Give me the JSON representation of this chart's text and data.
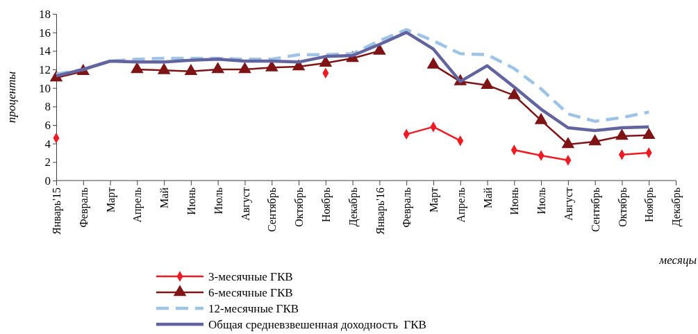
{
  "chart_data": {
    "type": "line",
    "ylabel": "проценты",
    "xlabel": "месяцы",
    "categories": [
      "Январь'15",
      "Февраль",
      "Март",
      "Апрель",
      "Май",
      "Июнь",
      "Июль",
      "Август",
      "Сентябрь",
      "Октябрь",
      "Ноябрь",
      "Декабрь",
      "Январь'16",
      "Февраль",
      "Март",
      "Апрель",
      "Май",
      "Июнь",
      "Июль",
      "Август",
      "Сентябрь",
      "Октябрь",
      "Ноябрь",
      "Декабрь"
    ],
    "ylim": [
      0,
      18
    ],
    "yticks": [
      0,
      2,
      4,
      6,
      8,
      10,
      12,
      14,
      16,
      18
    ],
    "grid": false,
    "legend": "bottom",
    "series": [
      {
        "name": "3-месячные ГКВ",
        "color": "#ed1c24",
        "marker": "diamond",
        "line_style": "solid",
        "values": [
          4.6,
          null,
          null,
          null,
          null,
          null,
          null,
          null,
          null,
          null,
          11.6,
          null,
          null,
          5.0,
          5.8,
          4.3,
          null,
          3.3,
          2.7,
          2.2,
          null,
          2.8,
          3.0,
          null
        ]
      },
      {
        "name": "6-месячные ГКВ",
        "color": "#7f1416",
        "marker": "triangle",
        "line_style": "solid",
        "values": [
          11.1,
          11.8,
          null,
          12.0,
          11.9,
          11.8,
          12.0,
          12.0,
          12.2,
          12.3,
          12.7,
          13.2,
          14.0,
          null,
          12.5,
          10.7,
          10.3,
          9.2,
          6.5,
          3.9,
          4.2,
          4.8,
          4.9,
          null
        ]
      },
      {
        "name": "12-месячные ГКВ",
        "color": "#9dc3e6",
        "marker": "none",
        "line_style": "dashed",
        "values": [
          11.5,
          12.0,
          12.9,
          13.1,
          13.2,
          13.2,
          13.2,
          13.1,
          13.1,
          13.6,
          13.6,
          13.7,
          15.1,
          16.3,
          15.1,
          13.7,
          13.6,
          12.1,
          9.9,
          7.2,
          6.4,
          6.8,
          7.4,
          null
        ]
      },
      {
        "name": "Общая средневзвешенная доходность  ГКВ",
        "color": "#6264a0",
        "marker": "none",
        "line_style": "solid",
        "values": [
          11.3,
          12.0,
          12.9,
          12.8,
          12.8,
          13.0,
          13.1,
          12.9,
          12.9,
          12.8,
          13.4,
          13.5,
          14.7,
          16.0,
          14.2,
          10.7,
          12.4,
          10.1,
          7.7,
          5.7,
          5.4,
          5.7,
          5.8,
          null
        ]
      }
    ]
  }
}
